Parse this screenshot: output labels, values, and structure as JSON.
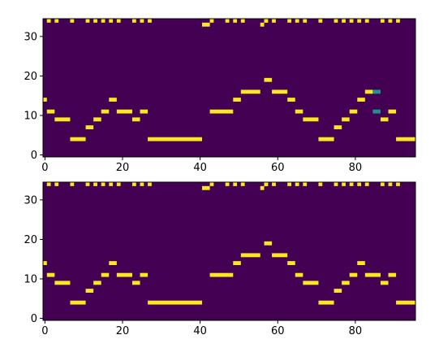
{
  "colors": {
    "background": "#440154",
    "active": "#fde725",
    "mid": "#21918c",
    "axis": "#000000"
  },
  "chart_data": [
    {
      "type": "heatmap",
      "panel": "top",
      "title": "",
      "xlabel": "",
      "ylabel": "",
      "xlim": [
        0,
        95
      ],
      "ylim": [
        -0.5,
        34.5
      ],
      "xticks": [
        "0",
        "20",
        "40",
        "60",
        "80"
      ],
      "yticks": [
        "0",
        "10",
        "20",
        "30"
      ],
      "value_scale": {
        "low": 0,
        "mid": 0.5,
        "high": 1
      },
      "melody": [
        {
          "x0": 0,
          "x1": 1,
          "y": 14
        },
        {
          "x0": 1,
          "x1": 3,
          "y": 11
        },
        {
          "x0": 3,
          "x1": 7,
          "y": 9
        },
        {
          "x0": 7,
          "x1": 11,
          "y": 4
        },
        {
          "x0": 11,
          "x1": 13,
          "y": 7
        },
        {
          "x0": 13,
          "x1": 15,
          "y": 9
        },
        {
          "x0": 15,
          "x1": 17,
          "y": 11
        },
        {
          "x0": 17,
          "x1": 19,
          "y": 14
        },
        {
          "x0": 19,
          "x1": 23,
          "y": 11
        },
        {
          "x0": 23,
          "x1": 25,
          "y": 9
        },
        {
          "x0": 25,
          "x1": 27,
          "y": 11
        },
        {
          "x0": 27,
          "x1": 41,
          "y": 4
        },
        {
          "x0": 43,
          "x1": 49,
          "y": 11
        },
        {
          "x0": 49,
          "x1": 51,
          "y": 14
        },
        {
          "x0": 51,
          "x1": 56,
          "y": 16
        },
        {
          "x0": 57,
          "x1": 59,
          "y": 19
        },
        {
          "x0": 59,
          "x1": 63,
          "y": 16
        },
        {
          "x0": 63,
          "x1": 65,
          "y": 14
        },
        {
          "x0": 65,
          "x1": 67,
          "y": 11
        },
        {
          "x0": 67,
          "x1": 71,
          "y": 9
        },
        {
          "x0": 71,
          "x1": 75,
          "y": 4
        },
        {
          "x0": 75,
          "x1": 77,
          "y": 7
        },
        {
          "x0": 77,
          "x1": 79,
          "y": 9
        },
        {
          "x0": 79,
          "x1": 81,
          "y": 11
        },
        {
          "x0": 81,
          "x1": 83,
          "y": 14
        },
        {
          "x0": 83,
          "x1": 85,
          "y": 16
        },
        {
          "x0": 85,
          "x1": 87,
          "y": 16,
          "value": 0.5
        },
        {
          "x0": 85,
          "x1": 87,
          "y": 11,
          "value": 0.5
        },
        {
          "x0": 87,
          "x1": 89,
          "y": 9
        },
        {
          "x0": 89,
          "x1": 91,
          "y": 11
        },
        {
          "x0": 91,
          "x1": 96,
          "y": 4
        }
      ],
      "top_row_x": [
        1,
        3,
        7,
        11,
        13,
        15,
        17,
        19,
        23,
        25,
        27,
        43,
        47,
        49,
        51,
        57,
        59,
        63,
        65,
        67,
        71,
        75,
        77,
        79,
        81,
        83,
        87,
        89,
        91
      ],
      "extra_cells": [
        {
          "x0": 41,
          "x1": 43,
          "y": 33
        },
        {
          "x0": 56,
          "x1": 57,
          "y": 33
        },
        {
          "x0": 57,
          "x1": 58,
          "y": 34
        }
      ]
    },
    {
      "type": "heatmap",
      "panel": "bottom",
      "title": "",
      "xlabel": "",
      "ylabel": "",
      "xlim": [
        0,
        95
      ],
      "ylim": [
        -0.5,
        34.5
      ],
      "xticks": [
        "0",
        "20",
        "40",
        "60",
        "80"
      ],
      "yticks": [
        "0",
        "10",
        "20",
        "30"
      ],
      "value_scale": {
        "low": 0,
        "mid": 0.5,
        "high": 1
      },
      "melody": [
        {
          "x0": 0,
          "x1": 1,
          "y": 14
        },
        {
          "x0": 1,
          "x1": 3,
          "y": 11
        },
        {
          "x0": 3,
          "x1": 7,
          "y": 9
        },
        {
          "x0": 7,
          "x1": 11,
          "y": 4
        },
        {
          "x0": 11,
          "x1": 13,
          "y": 7
        },
        {
          "x0": 13,
          "x1": 15,
          "y": 9
        },
        {
          "x0": 15,
          "x1": 17,
          "y": 11
        },
        {
          "x0": 17,
          "x1": 19,
          "y": 14
        },
        {
          "x0": 19,
          "x1": 23,
          "y": 11
        },
        {
          "x0": 23,
          "x1": 25,
          "y": 9
        },
        {
          "x0": 25,
          "x1": 27,
          "y": 11
        },
        {
          "x0": 27,
          "x1": 41,
          "y": 4
        },
        {
          "x0": 43,
          "x1": 49,
          "y": 11
        },
        {
          "x0": 49,
          "x1": 51,
          "y": 14
        },
        {
          "x0": 51,
          "x1": 56,
          "y": 16
        },
        {
          "x0": 57,
          "x1": 59,
          "y": 19
        },
        {
          "x0": 59,
          "x1": 63,
          "y": 16
        },
        {
          "x0": 63,
          "x1": 65,
          "y": 14
        },
        {
          "x0": 65,
          "x1": 67,
          "y": 11
        },
        {
          "x0": 67,
          "x1": 71,
          "y": 9
        },
        {
          "x0": 71,
          "x1": 75,
          "y": 4
        },
        {
          "x0": 75,
          "x1": 77,
          "y": 7
        },
        {
          "x0": 77,
          "x1": 79,
          "y": 9
        },
        {
          "x0": 79,
          "x1": 81,
          "y": 11
        },
        {
          "x0": 81,
          "x1": 83,
          "y": 14
        },
        {
          "x0": 83,
          "x1": 87,
          "y": 11
        },
        {
          "x0": 87,
          "x1": 89,
          "y": 9
        },
        {
          "x0": 89,
          "x1": 91,
          "y": 11
        },
        {
          "x0": 91,
          "x1": 96,
          "y": 4
        }
      ],
      "top_row_x": [
        1,
        3,
        7,
        11,
        13,
        15,
        17,
        19,
        23,
        25,
        27,
        43,
        47,
        49,
        51,
        57,
        59,
        63,
        65,
        67,
        71,
        75,
        77,
        79,
        81,
        83,
        87,
        89,
        91
      ],
      "extra_cells": [
        {
          "x0": 41,
          "x1": 43,
          "y": 33
        },
        {
          "x0": 56,
          "x1": 57,
          "y": 33
        },
        {
          "x0": 57,
          "x1": 58,
          "y": 34
        }
      ]
    }
  ]
}
